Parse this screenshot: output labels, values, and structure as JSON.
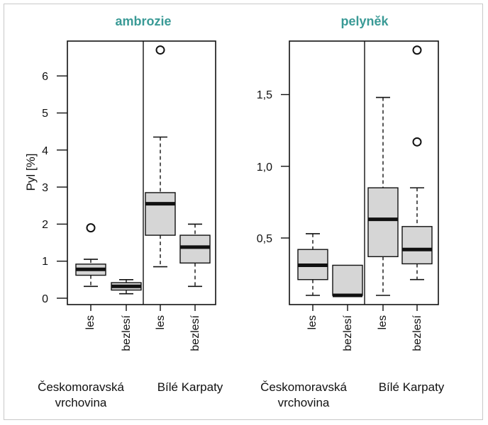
{
  "ylabel": "Pyl [%]",
  "colors": {
    "title": "#3a9a96",
    "box": "#d6d6d6",
    "stroke": "#111111"
  },
  "charts": [
    {
      "title": "ambrozie",
      "ticks": [
        "0",
        "1",
        "2",
        "3",
        "4",
        "5",
        "6"
      ],
      "regions": [
        "Českomoravská vrchovina",
        "Bílé Karpaty"
      ],
      "region_lines": [
        [
          "Českomoravská",
          "vrchovina"
        ],
        [
          "Bílé Karpaty"
        ]
      ],
      "categories": [
        "les",
        "bezlesí",
        "les",
        "bezlesí"
      ]
    },
    {
      "title": "pelyněk",
      "ticks": [
        "0,5",
        "1,0",
        "1,5"
      ],
      "regions": [
        "Českomoravská vrchovina",
        "Bílé Karpaty"
      ],
      "region_lines": [
        [
          "Českomoravská",
          "vrchovina"
        ],
        [
          "Bílé Karpaty"
        ]
      ],
      "categories": [
        "les",
        "bezlesí",
        "les",
        "bezlesí"
      ]
    }
  ],
  "chart_data": [
    {
      "type": "box",
      "title": "ambrozie",
      "ylabel": "Pyl [%]",
      "ylim": [
        0,
        6.9
      ],
      "yticks": [
        0,
        1,
        2,
        3,
        4,
        5,
        6
      ],
      "groups": [
        "Českomoravská vrchovina",
        "Bílé Karpaty"
      ],
      "categories": [
        "les",
        "bezlesí",
        "les",
        "bezlesí"
      ],
      "series": [
        {
          "group": "Českomoravská vrchovina",
          "category": "les",
          "min": 0.32,
          "q1": 0.62,
          "median": 0.78,
          "q3": 0.92,
          "max": 1.05,
          "outliers": [
            1.9
          ]
        },
        {
          "group": "Českomoravská vrchovina",
          "category": "bezlesí",
          "min": 0.12,
          "q1": 0.22,
          "median": 0.32,
          "q3": 0.42,
          "max": 0.5,
          "outliers": []
        },
        {
          "group": "Bílé Karpaty",
          "category": "les",
          "min": 0.85,
          "q1": 1.7,
          "median": 2.55,
          "q3": 2.85,
          "max": 4.35,
          "outliers": [
            6.7
          ]
        },
        {
          "group": "Bílé Karpaty",
          "category": "bezlesí",
          "min": 0.32,
          "q1": 0.95,
          "median": 1.38,
          "q3": 1.7,
          "max": 2.0,
          "outliers": []
        }
      ]
    },
    {
      "type": "box",
      "title": "pelyněk",
      "ylabel": "",
      "ylim": [
        0.05,
        1.85
      ],
      "yticks": [
        0.5,
        1.0,
        1.5
      ],
      "groups": [
        "Českomoravská vrchovina",
        "Bílé Karpaty"
      ],
      "categories": [
        "les",
        "bezlesí",
        "les",
        "bezlesí"
      ],
      "series": [
        {
          "group": "Českomoravská vrchovina",
          "category": "les",
          "min": 0.1,
          "q1": 0.21,
          "median": 0.31,
          "q3": 0.42,
          "max": 0.53,
          "outliers": []
        },
        {
          "group": "Českomoravská vrchovina",
          "category": "bezlesí",
          "min": 0.1,
          "q1": 0.1,
          "median": 0.1,
          "q3": 0.31,
          "max": 0.31,
          "outliers": []
        },
        {
          "group": "Bílé Karpaty",
          "category": "les",
          "min": 0.1,
          "q1": 0.37,
          "median": 0.63,
          "q3": 0.85,
          "max": 1.48,
          "outliers": []
        },
        {
          "group": "Bílé Karpaty",
          "category": "bezlesí",
          "min": 0.21,
          "q1": 0.32,
          "median": 0.42,
          "q3": 0.58,
          "max": 0.85,
          "outliers": [
            1.17,
            1.81
          ]
        }
      ]
    }
  ]
}
